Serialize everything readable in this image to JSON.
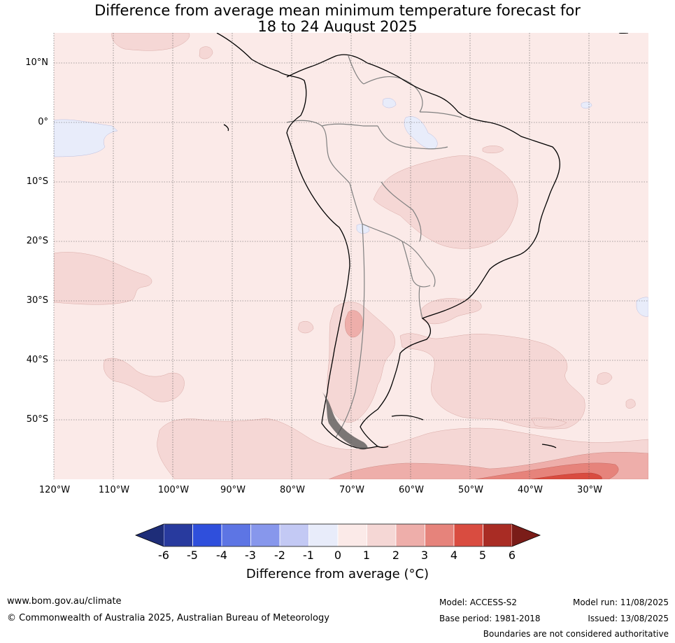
{
  "title": {
    "line1": "Difference from average mean minimum temperature forecast for",
    "line2": "18 to 24 August 2025"
  },
  "map": {
    "latitude_labels": [
      "10°N",
      "0°",
      "10°S",
      "20°S",
      "30°S",
      "40°S",
      "50°S"
    ],
    "longitude_labels": [
      "120°W",
      "110°W",
      "100°W",
      "90°W",
      "80°W",
      "70°W",
      "60°W",
      "50°W",
      "40°W",
      "30°W"
    ],
    "colors": {
      "ocean_base": "#fbeae8",
      "warm_1_2": "#f5d7d5",
      "warm_2_3": "#eeaeaa",
      "warm_3_4": "#e6837b",
      "warm_4_5": "#d94c40",
      "cool_0_m1": "#e8ecfa",
      "coast": "#000000",
      "borders": "#808080",
      "grid": "#555555"
    }
  },
  "colorbar": {
    "ticks": [
      "-6",
      "-5",
      "-4",
      "-3",
      "-2",
      "-1",
      "0",
      "1",
      "2",
      "3",
      "4",
      "5",
      "6"
    ],
    "colors": [
      "#283a9e",
      "#2f4fdc",
      "#5d75e4",
      "#8797ec",
      "#c3c9f4",
      "#e8ecfa",
      "#fbeae8",
      "#f5d7d5",
      "#eeaeaa",
      "#e6837b",
      "#d94c40",
      "#a92c24"
    ],
    "low_extend_color": "#1e2d78",
    "high_extend_color": "#7a1c18",
    "label": "Difference from average (°C)"
  },
  "footer": {
    "website": "www.bom.gov.au/climate",
    "copyright": "© Commonwealth of Australia 2025, Australian Bureau of Meteorology",
    "model": "Model: ACCESS-S2",
    "base_period": "Base period: 1981-2018",
    "model_run": "Model run: 11/08/2025",
    "issued": "Issued: 13/08/2025",
    "disclaimer": "Boundaries are not considered authoritative"
  }
}
